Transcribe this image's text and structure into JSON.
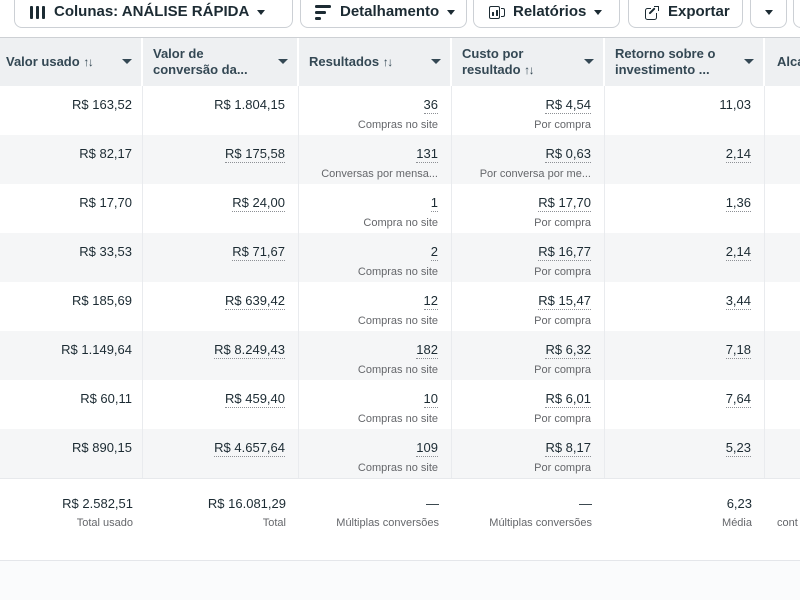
{
  "toolbar": {
    "columns_label": "Colunas: ANÁLISE RÁPIDA",
    "breakdown_label": "Detalhamento",
    "reports_label": "Relatórios",
    "export_label": "Exportar"
  },
  "table": {
    "headers": {
      "spend": "Valor usado",
      "spend_sort": "↑↓",
      "conv_line1": "Valor de",
      "conv_line2": "conversão da...",
      "results": "Resultados",
      "results_sort": "↑↓",
      "cost_line1": "Custo por",
      "cost_line2": "resultado",
      "cost_sort": "↑↓",
      "roi_line1": "Retorno sobre o",
      "roi_line2": "investimento ...",
      "reach": "Alca"
    },
    "rows": [
      {
        "spend": "R$ 163,52",
        "conv": "R$ 1.804,15",
        "results": "36",
        "results_label": "Compras no site",
        "cost": "R$ 4,54",
        "cost_label": "Por compra",
        "roas": "11,03",
        "u": {
          "conv": false,
          "results": true,
          "cost": true,
          "roas": false
        }
      },
      {
        "spend": "R$ 82,17",
        "conv": "R$ 175,58",
        "results": "131",
        "results_label": "Conversas por mensa...",
        "cost": "R$ 0,63",
        "cost_label": "Por conversa por me...",
        "roas": "2,14",
        "u": {
          "conv": true,
          "results": true,
          "cost": true,
          "roas": true
        }
      },
      {
        "spend": "R$ 17,70",
        "conv": "R$ 24,00",
        "results": "1",
        "results_label": "Compra no site",
        "cost": "R$ 17,70",
        "cost_label": "Por compra",
        "roas": "1,36",
        "u": {
          "conv": true,
          "results": true,
          "cost": true,
          "roas": true
        }
      },
      {
        "spend": "R$ 33,53",
        "conv": "R$ 71,67",
        "results": "2",
        "results_label": "Compras no site",
        "cost": "R$ 16,77",
        "cost_label": "Por compra",
        "roas": "2,14",
        "u": {
          "conv": true,
          "results": true,
          "cost": true,
          "roas": true
        }
      },
      {
        "spend": "R$ 185,69",
        "conv": "R$ 639,42",
        "results": "12",
        "results_label": "Compras no site",
        "cost": "R$ 15,47",
        "cost_label": "Por compra",
        "roas": "3,44",
        "u": {
          "conv": true,
          "results": true,
          "cost": true,
          "roas": true
        }
      },
      {
        "spend": "R$ 1.149,64",
        "conv": "R$ 8.249,43",
        "results": "182",
        "results_label": "Compras no site",
        "cost": "R$ 6,32",
        "cost_label": "Por compra",
        "roas": "7,18",
        "u": {
          "conv": true,
          "results": true,
          "cost": true,
          "roas": true
        }
      },
      {
        "spend": "R$ 60,11",
        "conv": "R$ 459,40",
        "results": "10",
        "results_label": "Compras no site",
        "cost": "R$ 6,01",
        "cost_label": "Por compra",
        "roas": "7,64",
        "u": {
          "conv": true,
          "results": true,
          "cost": true,
          "roas": true
        }
      },
      {
        "spend": "R$ 890,15",
        "conv": "R$ 4.657,64",
        "results": "109",
        "results_label": "Compras no site",
        "cost": "R$ 8,17",
        "cost_label": "Por compra",
        "roas": "5,23",
        "u": {
          "conv": true,
          "results": true,
          "cost": true,
          "roas": true
        }
      }
    ],
    "total": {
      "spend": "R$ 2.582,51",
      "spend_label": "Total usado",
      "conv": "R$ 16.081,29",
      "conv_label": "Total",
      "results": "—",
      "results_label": "Múltiplas conversões",
      "cost": "—",
      "cost_label": "Múltiplas conversões",
      "roas": "6,23",
      "roas_label": "Média",
      "reach_label": "cont"
    }
  },
  "colors": {
    "text_dark": "#1c2b33",
    "label_gray": "#65676b",
    "header_bg": "#eef0f2",
    "row_alt_bg": "#f5f6f7"
  }
}
